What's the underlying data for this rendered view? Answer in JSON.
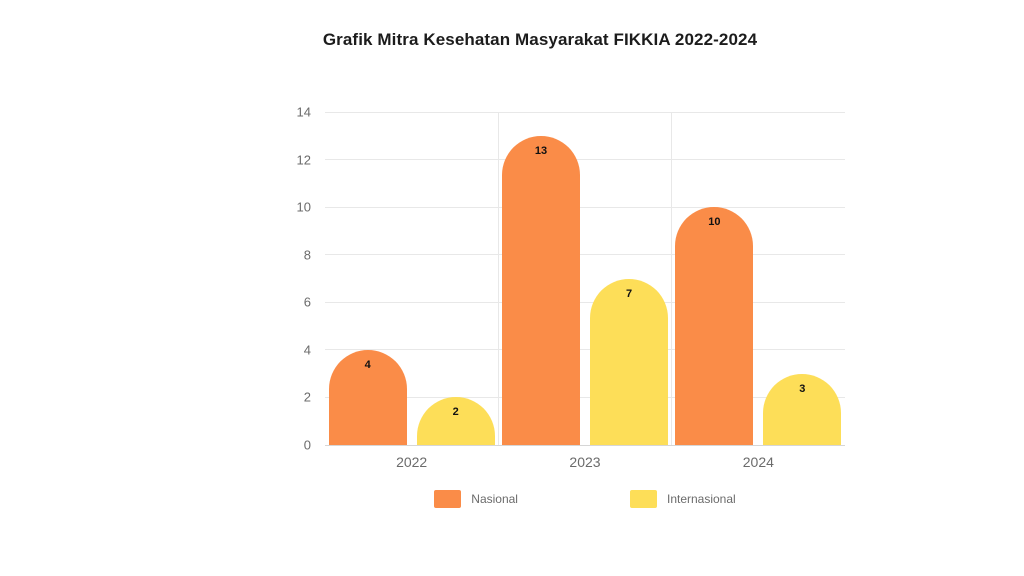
{
  "page": {
    "background": "#ffffff"
  },
  "chart_data": {
    "type": "bar",
    "title": "Grafik Mitra Kesehatan Masyarakat FIKKIA 2022-2024",
    "categories": [
      "2022",
      "2023",
      "2024"
    ],
    "series": [
      {
        "name": "Nasional",
        "color": "#FA8C48",
        "values": [
          4,
          13,
          10
        ]
      },
      {
        "name": "Internasional",
        "color": "#FDDE58",
        "values": [
          2,
          7,
          3
        ]
      }
    ],
    "xlabel": "",
    "ylabel": "",
    "ylim": [
      0,
      14
    ],
    "y_ticks": [
      0,
      2,
      4,
      6,
      8,
      10,
      12,
      14
    ],
    "grid": true,
    "category_boundary_lines": true,
    "value_labels": true,
    "legend_position": "bottom",
    "colors": {
      "axis_text": "#6b6b6b",
      "gridline": "#e8e8e8",
      "zero_line": "#d6d6d6",
      "title_text": "#1c1c1c",
      "value_label_text": "#111111",
      "background": "#ffffff"
    }
  }
}
